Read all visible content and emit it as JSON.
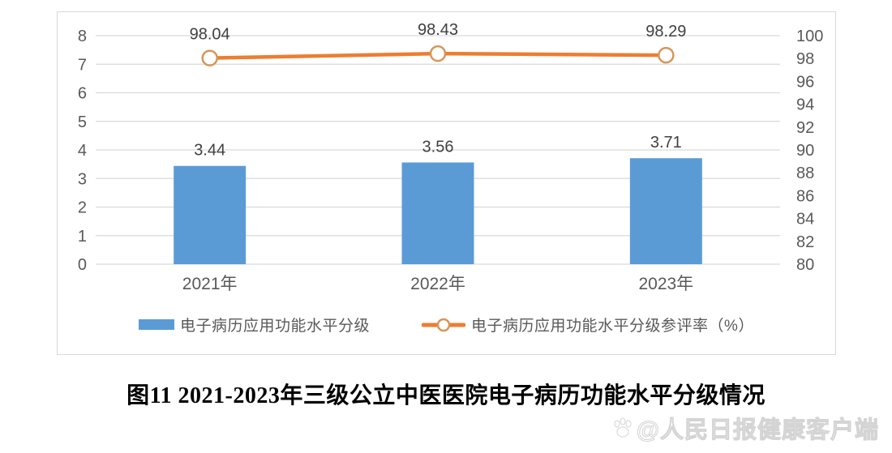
{
  "figure": {
    "caption": "图11 2021-2023年三级公立中医医院电子病历功能水平分级情况"
  },
  "watermark": {
    "logo_icon": "paw-print-icon",
    "text": "@人民日报健康客户端"
  },
  "colors": {
    "bar": "#5B9BD5",
    "line": "#ED7D31",
    "marker_ring": "#D69659",
    "marker_fill": "#FFFFFF",
    "grid": "#D9D9D9",
    "panel_border": "#D9D9D9",
    "axis_text": "#595959",
    "data_label_text": "#404040",
    "caption_text": "#000000"
  },
  "chart_data": {
    "type": "bar",
    "subtype": "combo-bar-line",
    "title": "",
    "categories": [
      "2021年",
      "2022年",
      "2023年"
    ],
    "series": [
      {
        "name": "电子病历应用功能水平分级",
        "type": "bar",
        "axis": "left",
        "values": [
          3.44,
          3.56,
          3.71
        ],
        "color": "#5B9BD5"
      },
      {
        "name": "电子病历应用功能水平分级参评率（%）",
        "type": "line",
        "axis": "right",
        "values": [
          98.04,
          98.43,
          98.29
        ],
        "color": "#ED7D31",
        "marker": "open-circle"
      }
    ],
    "left_axis": {
      "min": 0,
      "max": 8,
      "step": 1,
      "ticks": [
        0,
        1,
        2,
        3,
        4,
        5,
        6,
        7,
        8
      ]
    },
    "right_axis": {
      "min": 80,
      "max": 100,
      "step": 2,
      "ticks": [
        80,
        82,
        84,
        86,
        88,
        90,
        92,
        94,
        96,
        98,
        100
      ]
    },
    "grid": true,
    "data_labels": true,
    "legend_position": "bottom"
  }
}
